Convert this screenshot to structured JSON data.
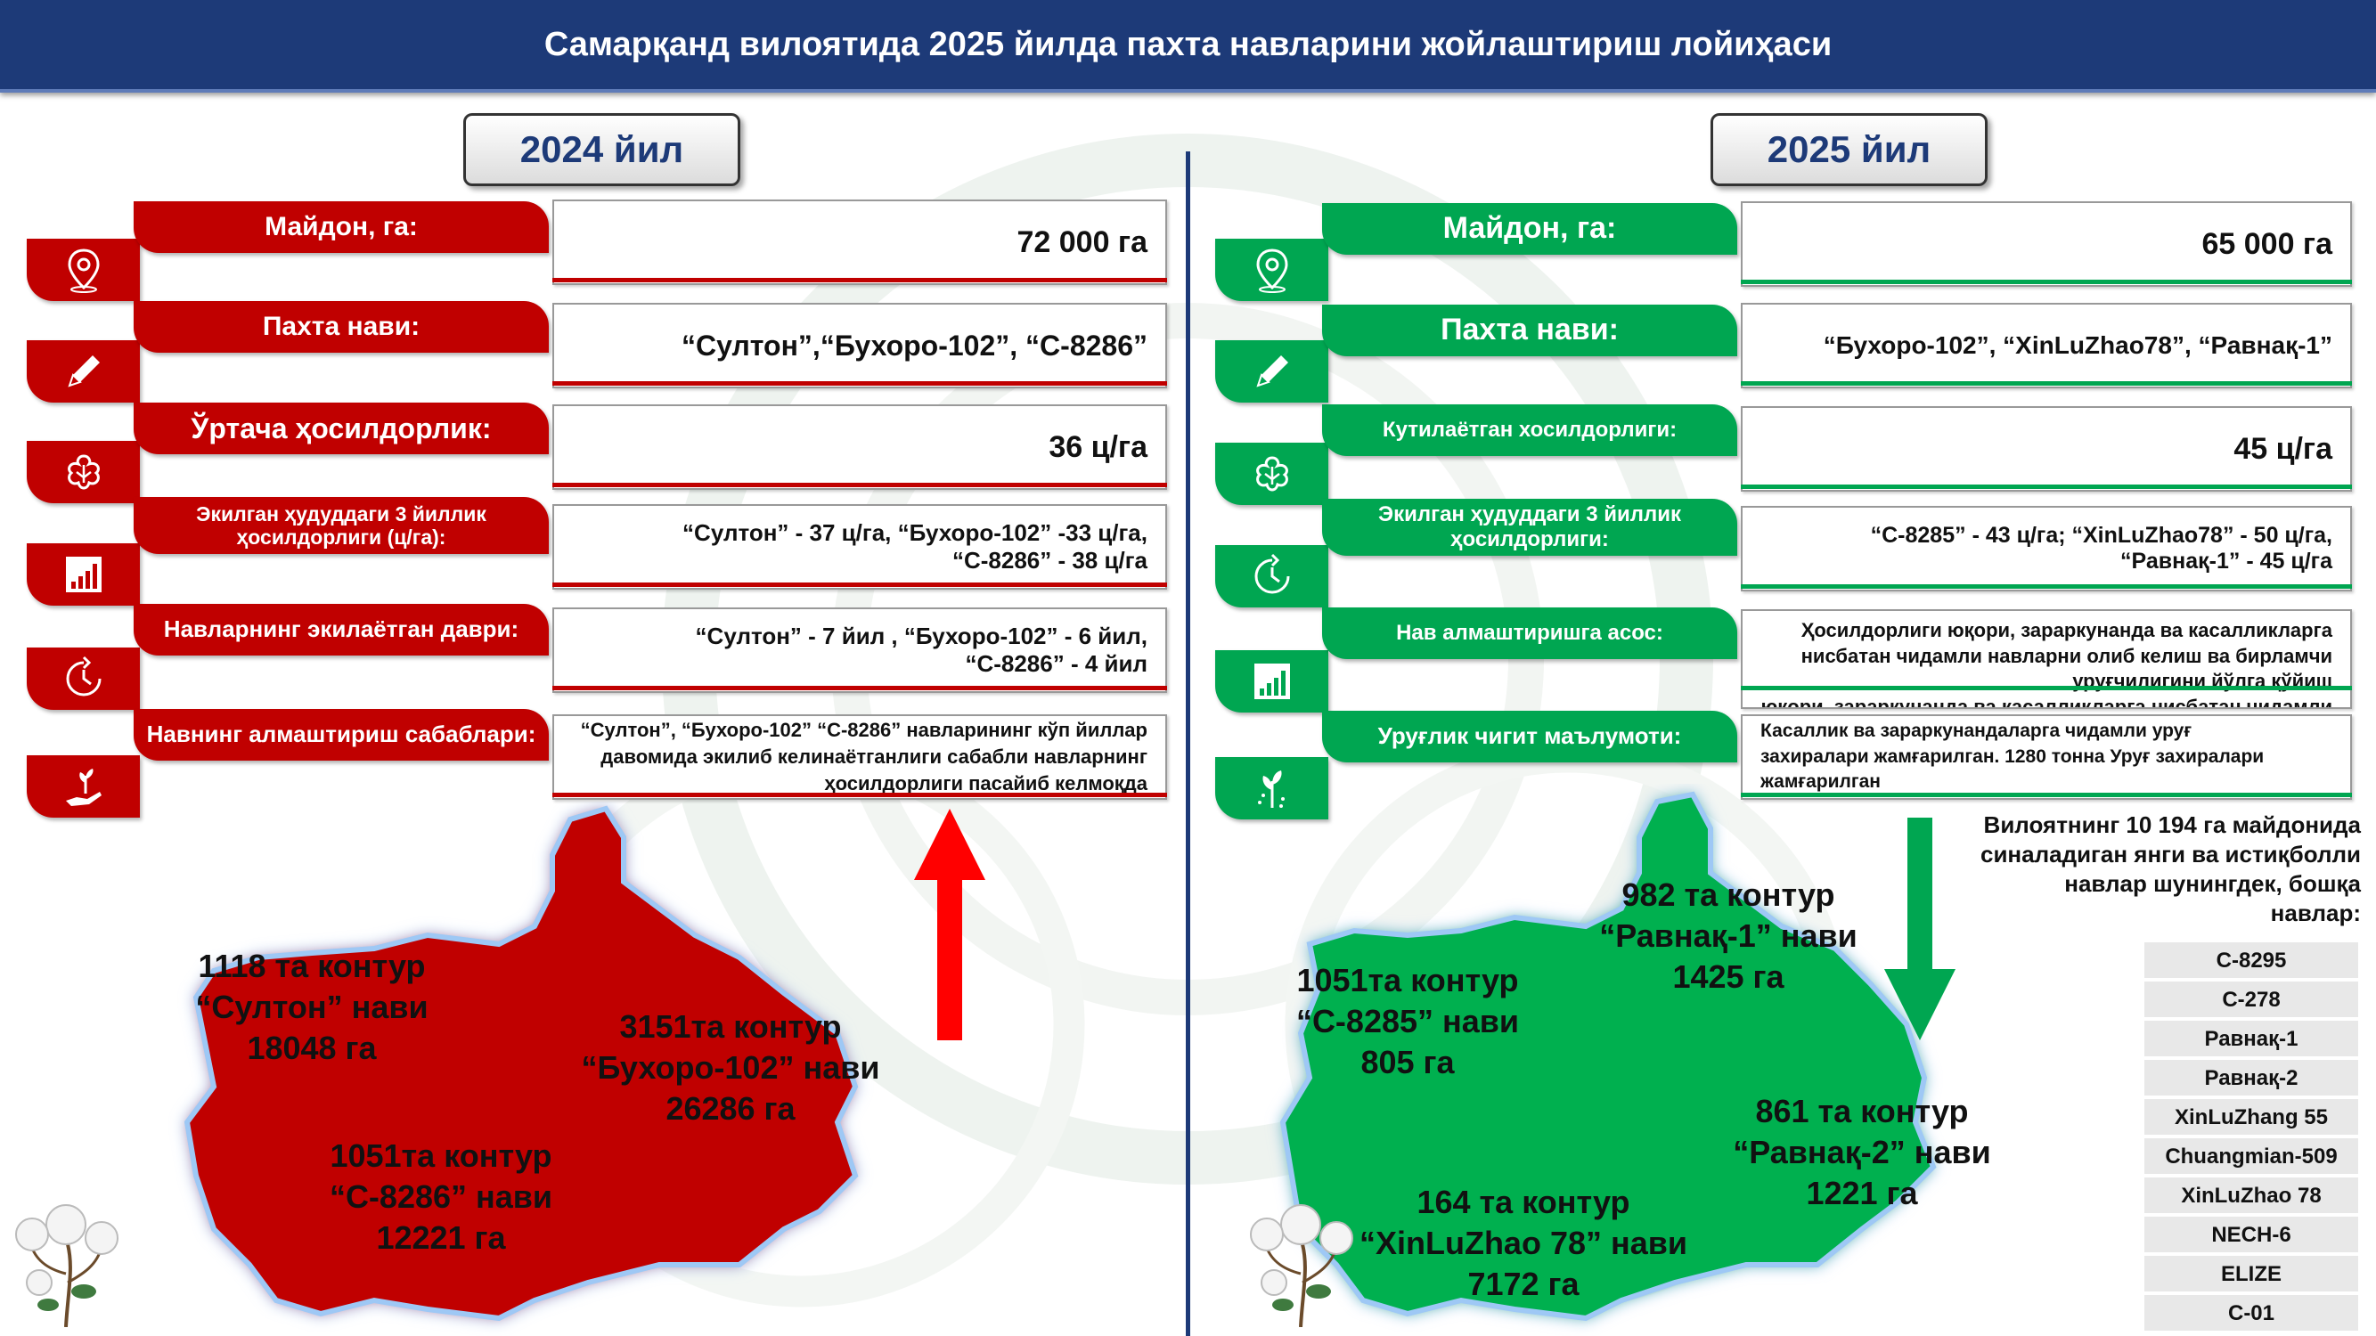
{
  "header": {
    "title": "Самарқанд вилоятида 2025 йилда пахта навларини жойлаштириш лойиҳаси"
  },
  "colors": {
    "header": "#1d3a78",
    "red": "#c00000",
    "green": "#00a651",
    "map_red": "#c00000",
    "map_green": "#00b050"
  },
  "left": {
    "year": "2024 йил",
    "rows": [
      {
        "icon": "location-pin-icon",
        "label": "Майдон, га:",
        "value": "72 000 га"
      },
      {
        "icon": "pencil-icon",
        "label": "Пахта нави:",
        "value": "“Султон”,“Бухоро-102”, “С-8286”"
      },
      {
        "icon": "cotton-boll-icon",
        "label": "Ўртача ҳосилдорлик:",
        "value": "36 ц/га"
      },
      {
        "icon": "bar-chart-icon",
        "label": "Экилган ҳудуддаги 3 йиллик ҳосилдорлиги (ц/га):",
        "value_line1": "“Султон” - 37 ц/га, “Бухоро-102” -33 ц/га,",
        "value_line2": "“С-8286” - 38 ц/га"
      },
      {
        "icon": "clock-cycle-icon",
        "label": "Навларнинг экилаётган даври:",
        "value_line1": "“Султон” - 7 йил , “Бухоро-102” - 6 йил,",
        "value_line2": "“С-8286” - 4 йил"
      },
      {
        "icon": "plant-hand-icon",
        "label": "Навнинг алмаштириш сабаблари:",
        "value_line1": "“Султон”, “Бухоро-102” “С-8286” навларининг кўп йиллар",
        "value_line2": "давомида экилиб келинаётганлиги сабабли навларнинг",
        "value_line3": "ҳосилдорлиги пасайиб келмоқда"
      }
    ],
    "map": [
      {
        "line1": "1118 та контур",
        "line2": "“Султон” нави",
        "line3": "18048 га"
      },
      {
        "line1": "3151та контур",
        "line2": "“Бухоро-102” нави",
        "line3": "26286 га"
      },
      {
        "line1": "1051та контур",
        "line2": "“С-8286” нави",
        "line3": "12221 га"
      }
    ]
  },
  "right": {
    "year": "2025 йил",
    "rows": [
      {
        "icon": "location-pin-icon",
        "label": "Майдон, га:",
        "value": "65 000 га"
      },
      {
        "icon": "pencil-icon",
        "label": "Пахта нави:",
        "value": "“Бухоро-102”, “XinLuZhao78”, “Равнақ-1”"
      },
      {
        "icon": "cotton-boll-icon",
        "label": "Кутилаётган хосилдорлиги:",
        "value": "45 ц/га"
      },
      {
        "icon": "clock-cycle-icon",
        "label": "Экилган ҳудуддаги 3 йиллик ҳосилдорлиги:",
        "value_line1": "“С-8285” - 43 ц/га; “XinLuZhao78” - 50 ц/га,",
        "value_line2": "“Равнақ-1” - 45 ц/га"
      },
      {
        "icon": "bar-chart-icon",
        "label": "Нав алмаштиришга асос:",
        "value_line1": "Ҳосилдорлиги юқори,  зараркунанда ва касалликларга",
        "value_line2": "нисбатан чидамли навларни олиб келиш ва бирламчи",
        "value_line3": "уруғчилигини йўлга қўйиш",
        "value_line4": "юқори,  зараркунанда ва касалликларга нисбатан чидамли"
      },
      {
        "icon": "sprout-icon",
        "label": "Уруғлик чигит маълумоти:",
        "value_line1": "Касаллик   ва   зараркунандаларга   чидамли   уруғ",
        "value_line2": "захиралари жамғарилган. 1280 тонна Уруғ захиралари",
        "value_line3": "жамғарилган"
      }
    ],
    "map": [
      {
        "line1": "982 та контур",
        "line2": "“Равнақ-1” нави",
        "line3": "1425 га"
      },
      {
        "line1": "1051та контур",
        "line2": "“С-8285” нави",
        "line3": "805 га"
      },
      {
        "line1": "861 та контур",
        "line2": "“Равнақ-2” нави",
        "line3": "1221 га"
      },
      {
        "line1": "164 та контур",
        "line2": "“XinLuZhao 78” нави",
        "line3": "7172 га"
      }
    ],
    "trial_text": {
      "line1": "Вилоятнинг 10 194 га майдонида",
      "line2": "синаладиган янги ва истиқболли",
      "line3": "навлар шунингдек, бошқа",
      "line4": "навлар:"
    },
    "varieties": [
      "С-8295",
      "С-278",
      "Равнақ-1",
      "Равнақ-2",
      "XinLuZhang 55",
      "Chuangmian-509",
      "XinLuZhao 78",
      "NECH-6",
      "ELIZE",
      "С-01"
    ]
  }
}
